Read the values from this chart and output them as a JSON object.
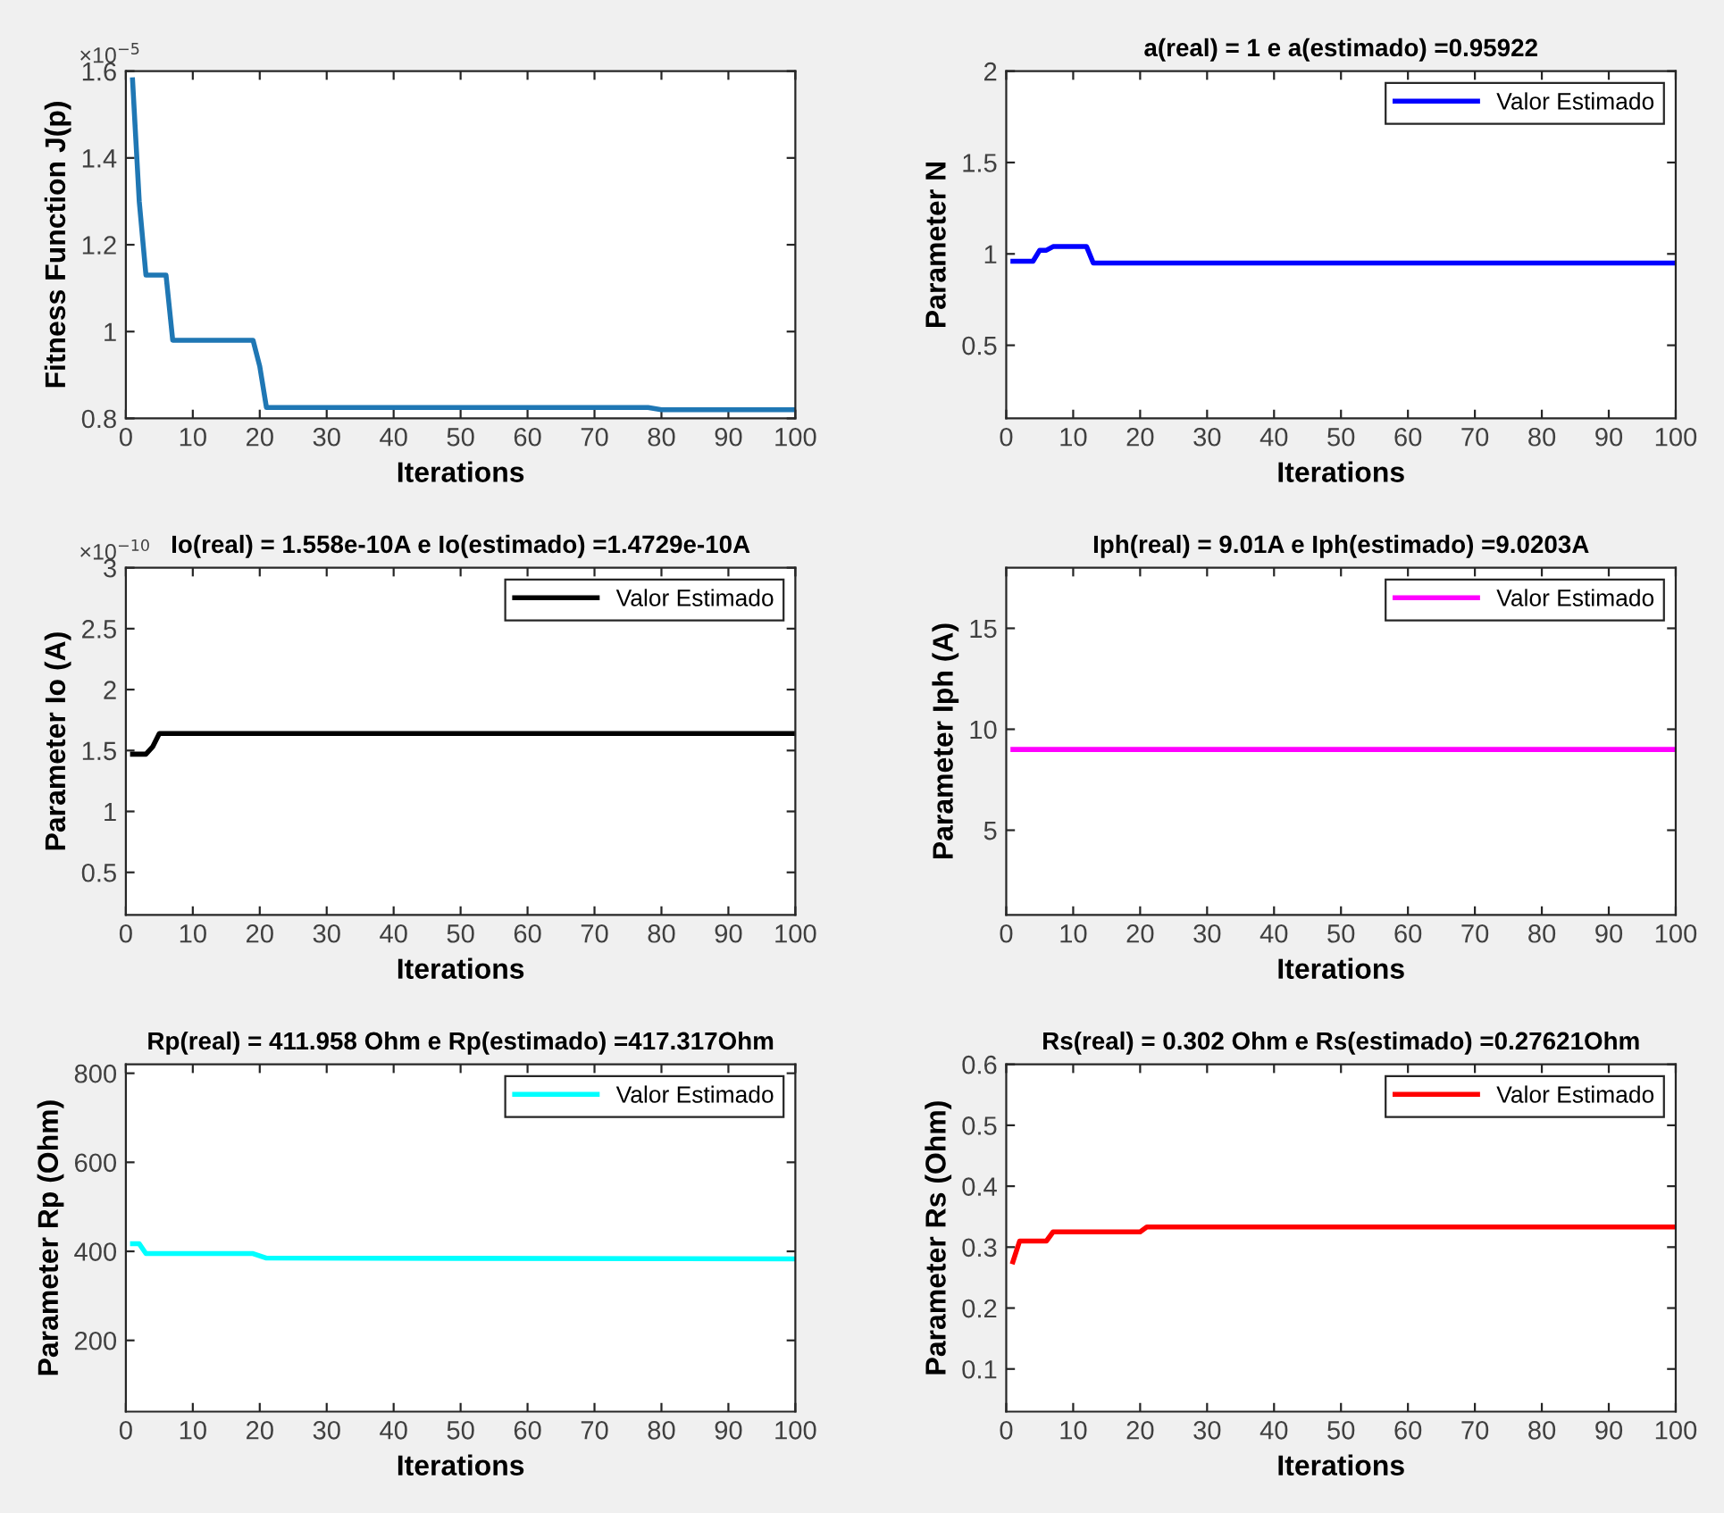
{
  "chart_data": [
    {
      "type": "line",
      "xlabel": "Iterations",
      "ylabel": "Fitness Function J(p)",
      "xlim": [
        0,
        100
      ],
      "xticks": [
        0,
        10,
        20,
        30,
        40,
        50,
        60,
        70,
        80,
        90,
        100
      ],
      "ylim": [
        0.8,
        1.6
      ],
      "yticks": [
        0.8,
        1,
        1.2,
        1.4,
        1.6
      ],
      "annotations": [
        "×10$^{−5}$"
      ],
      "series": [
        {
          "color": "#1f77b4",
          "x": [
            1,
            2,
            3,
            6,
            7,
            19,
            20,
            21,
            78,
            80,
            100
          ],
          "values": [
            1.58,
            1.3,
            1.13,
            1.13,
            0.98,
            0.98,
            0.92,
            0.825,
            0.825,
            0.82,
            0.82
          ]
        }
      ]
    },
    {
      "type": "line",
      "title": "a(real) = 1 e a(estimado) =0.95922",
      "xlabel": "Iterations",
      "ylabel": "Parameter N",
      "xlim": [
        0,
        100
      ],
      "xticks": [
        0,
        10,
        20,
        30,
        40,
        50,
        60,
        70,
        80,
        90,
        100
      ],
      "ylim": [
        0.1,
        2
      ],
      "yticks": [
        0.5,
        1,
        1.5,
        2
      ],
      "legend": "top right",
      "series": [
        {
          "name": "Valor Estimado",
          "color": "#0000ff",
          "x": [
            1,
            4,
            5,
            6,
            7,
            12,
            13,
            100
          ],
          "values": [
            0.96,
            0.96,
            1.02,
            1.02,
            1.04,
            1.04,
            0.95,
            0.95
          ]
        }
      ]
    },
    {
      "type": "line",
      "title": "Io(real) = 1.558e-10A e Io(estimado) =1.4729e-10A",
      "xlabel": "Iterations",
      "ylabel": "Parameter Io (A)",
      "xlim": [
        0,
        100
      ],
      "xticks": [
        0,
        10,
        20,
        30,
        40,
        50,
        60,
        70,
        80,
        90,
        100
      ],
      "ylim": [
        0.15,
        3
      ],
      "yticks": [
        0.5,
        1,
        1.5,
        2,
        2.5,
        3
      ],
      "legend": "top right",
      "annotations": [
        "×10$^{−10}$"
      ],
      "series": [
        {
          "name": "Valor Estimado",
          "color": "#000000",
          "x": [
            1,
            3,
            4,
            5,
            100
          ],
          "values": [
            1.47,
            1.47,
            1.53,
            1.64,
            1.64
          ]
        }
      ]
    },
    {
      "type": "line",
      "title": "Iph(real) = 9.01A e Iph(estimado) =9.0203A",
      "xlabel": "Iterations",
      "ylabel": "Parameter Iph (A)",
      "xlim": [
        0,
        100
      ],
      "xticks": [
        0,
        10,
        20,
        30,
        40,
        50,
        60,
        70,
        80,
        90,
        100
      ],
      "ylim": [
        0.8,
        18
      ],
      "yticks": [
        5,
        10,
        15
      ],
      "legend": "top right",
      "series": [
        {
          "name": "Valor Estimado",
          "color": "#ff00ff",
          "x": [
            1,
            100
          ],
          "values": [
            9.0,
            9.0
          ]
        }
      ]
    },
    {
      "type": "line",
      "title": "Rp(real) = 411.958 Ohm e Rp(estimado) =417.317Ohm",
      "xlabel": "Iterations",
      "ylabel": "Parameter Rp (Ohm)",
      "xlim": [
        0,
        100
      ],
      "xticks": [
        0,
        10,
        20,
        30,
        40,
        50,
        60,
        70,
        80,
        90,
        100
      ],
      "ylim": [
        40,
        820
      ],
      "yticks": [
        200,
        400,
        600,
        800
      ],
      "legend": "top right",
      "series": [
        {
          "name": "Valor Estimado",
          "color": "#00ffff",
          "x": [
            1,
            2,
            3,
            19,
            21,
            100
          ],
          "values": [
            417,
            417,
            395,
            395,
            385,
            383
          ]
        }
      ]
    },
    {
      "type": "line",
      "title": "Rs(real) = 0.302 Ohm e Rs(estimado) =0.27621Ohm",
      "xlabel": "Iterations",
      "ylabel": "Parameter Rs (Ohm)",
      "xlim": [
        0,
        100
      ],
      "xticks": [
        0,
        10,
        20,
        30,
        40,
        50,
        60,
        70,
        80,
        90,
        100
      ],
      "ylim": [
        0.03,
        0.6
      ],
      "yticks": [
        0.1,
        0.2,
        0.3,
        0.4,
        0.5,
        0.6
      ],
      "legend": "top right",
      "series": [
        {
          "name": "Valor Estimado",
          "color": "#ff0000",
          "x": [
            1,
            2,
            6,
            7,
            20,
            21,
            100
          ],
          "values": [
            0.276,
            0.31,
            0.31,
            0.325,
            0.325,
            0.333,
            0.333
          ]
        }
      ]
    }
  ]
}
